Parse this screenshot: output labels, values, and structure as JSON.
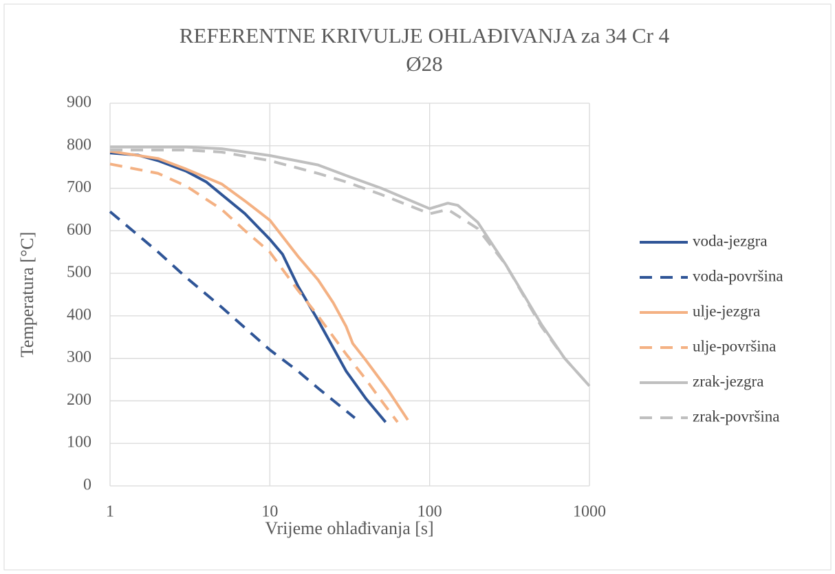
{
  "chart_data": {
    "type": "line",
    "title": [
      "REFERENTNE KRIVULJE OHLAĐIVANJA za 34 Cr 4",
      "Ø28"
    ],
    "x_label": "Vrijeme ohlađivanja [s]",
    "y_label": "Temperatura [°C]",
    "x_scale": "log",
    "xlim": [
      1,
      1000
    ],
    "xticks": [
      1,
      10,
      100,
      1000
    ],
    "ylim": [
      0,
      900
    ],
    "yticks": [
      0,
      100,
      200,
      300,
      400,
      500,
      600,
      700,
      800,
      900
    ],
    "grid": true,
    "legend": "right",
    "series": [
      {
        "name": "voda-jezgra",
        "color": "#2f5597",
        "dash": false,
        "x": [
          1,
          1.5,
          2,
          3,
          4,
          5,
          7,
          10,
          12,
          15,
          20,
          30,
          40,
          53
        ],
        "values": [
          783,
          778,
          765,
          740,
          715,
          685,
          640,
          580,
          545,
          470,
          390,
          270,
          205,
          150
        ]
      },
      {
        "name": "voda-površina",
        "color": "#2f5597",
        "dash": true,
        "x": [
          1,
          2,
          3,
          5,
          10,
          15,
          20,
          34
        ],
        "values": [
          645,
          550,
          490,
          420,
          320,
          270,
          230,
          160
        ]
      },
      {
        "name": "ulje-jezgra",
        "color": "#f4b183",
        "dash": false,
        "x": [
          1,
          2,
          3,
          5,
          7,
          10,
          15,
          20,
          25,
          30,
          33,
          40,
          55,
          73
        ],
        "values": [
          787,
          770,
          745,
          710,
          670,
          625,
          540,
          485,
          430,
          375,
          335,
          295,
          225,
          155
        ]
      },
      {
        "name": "ulje-površina",
        "color": "#f4b183",
        "dash": true,
        "x": [
          1,
          2,
          3,
          5,
          7,
          10,
          15,
          20,
          30,
          40,
          50,
          63
        ],
        "values": [
          757,
          735,
          705,
          650,
          600,
          550,
          460,
          400,
          310,
          250,
          200,
          150
        ]
      },
      {
        "name": "zrak-jezgra",
        "color": "#bfbfbf",
        "dash": false,
        "x": [
          1,
          3,
          5,
          10,
          20,
          30,
          50,
          100,
          130,
          150,
          200,
          300,
          500,
          700,
          1000
        ],
        "values": [
          797,
          797,
          793,
          777,
          755,
          730,
          700,
          652,
          665,
          660,
          620,
          520,
          380,
          300,
          235
        ]
      },
      {
        "name": "zrak-površina",
        "color": "#bfbfbf",
        "dash": true,
        "x": [
          1,
          3,
          5,
          10,
          20,
          30,
          50,
          100,
          130,
          200,
          300,
          500,
          700,
          1000
        ],
        "values": [
          790,
          790,
          785,
          765,
          735,
          715,
          685,
          640,
          650,
          605,
          520,
          375,
          300,
          235
        ]
      }
    ]
  }
}
